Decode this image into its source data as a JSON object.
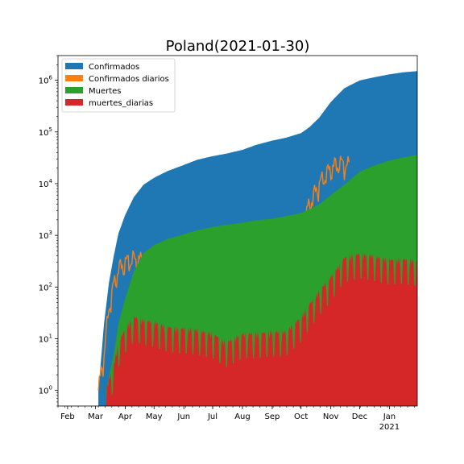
{
  "chart_data": {
    "type": "area",
    "title": "Poland(2021-01-30)",
    "xlabel": "",
    "ylabel": "",
    "yscale": "log",
    "ylim": [
      0.5,
      3000000
    ],
    "xlim": [
      "2020-01-22",
      "2021-01-30"
    ],
    "grid": false,
    "legend_position": "top-left",
    "x_ticks": [
      {
        "date": "2020-02-01",
        "label": "Feb"
      },
      {
        "date": "2020-03-01",
        "label": "Mar"
      },
      {
        "date": "2020-04-01",
        "label": "Apr"
      },
      {
        "date": "2020-05-01",
        "label": "May"
      },
      {
        "date": "2020-06-01",
        "label": "Jun"
      },
      {
        "date": "2020-07-01",
        "label": "Jul"
      },
      {
        "date": "2020-08-01",
        "label": "Aug"
      },
      {
        "date": "2020-09-01",
        "label": "Sep"
      },
      {
        "date": "2020-10-01",
        "label": "Oct"
      },
      {
        "date": "2020-11-01",
        "label": "Nov"
      },
      {
        "date": "2020-12-01",
        "label": "Dec"
      },
      {
        "date": "2021-01-01",
        "label": "Jan"
      }
    ],
    "x_year_label": {
      "date": "2021-01-01",
      "label": "2021"
    },
    "y_ticks": [
      {
        "value": 1,
        "exp": "0"
      },
      {
        "value": 10,
        "exp": "1"
      },
      {
        "value": 100,
        "exp": "2"
      },
      {
        "value": 1000,
        "exp": "3"
      },
      {
        "value": 10000,
        "exp": "4"
      },
      {
        "value": 100000,
        "exp": "5"
      },
      {
        "value": 1000000,
        "exp": "6"
      }
    ],
    "series": [
      {
        "name": "Confirmados",
        "color": "#1f77b4",
        "style": "area",
        "points": [
          [
            "2020-03-04",
            1
          ],
          [
            "2020-03-10",
            20
          ],
          [
            "2020-03-15",
            120
          ],
          [
            "2020-03-20",
            400
          ],
          [
            "2020-03-25",
            1100
          ],
          [
            "2020-04-01",
            2500
          ],
          [
            "2020-04-10",
            5500
          ],
          [
            "2020-04-20",
            9500
          ],
          [
            "2020-05-01",
            13000
          ],
          [
            "2020-05-15",
            17500
          ],
          [
            "2020-06-01",
            23000
          ],
          [
            "2020-06-15",
            29000
          ],
          [
            "2020-07-01",
            34000
          ],
          [
            "2020-07-15",
            38000
          ],
          [
            "2020-08-01",
            45000
          ],
          [
            "2020-08-15",
            56000
          ],
          [
            "2020-09-01",
            68000
          ],
          [
            "2020-09-15",
            77000
          ],
          [
            "2020-10-01",
            95000
          ],
          [
            "2020-10-10",
            125000
          ],
          [
            "2020-10-20",
            190000
          ],
          [
            "2020-11-01",
            380000
          ],
          [
            "2020-11-15",
            700000
          ],
          [
            "2020-12-01",
            990000
          ],
          [
            "2020-12-15",
            1130000
          ],
          [
            "2021-01-01",
            1300000
          ],
          [
            "2021-01-15",
            1420000
          ],
          [
            "2021-01-30",
            1500000
          ]
        ]
      },
      {
        "name": "Confirmados diarios",
        "color": "#ff7f0e",
        "style": "line",
        "points": [
          [
            "2020-03-04",
            1
          ],
          [
            "2020-03-10",
            5
          ],
          [
            "2020-03-15",
            40
          ],
          [
            "2020-03-20",
            110
          ],
          [
            "2020-03-25",
            220
          ],
          [
            "2020-04-01",
            300
          ],
          [
            "2020-04-10",
            350
          ],
          [
            "2020-04-20",
            320
          ],
          [
            "2020-05-01",
            330
          ],
          [
            "2020-05-15",
            350
          ],
          [
            "2020-06-01",
            350
          ],
          [
            "2020-06-15",
            400
          ],
          [
            "2020-07-01",
            320
          ],
          [
            "2020-07-15",
            310
          ],
          [
            "2020-08-01",
            600
          ],
          [
            "2020-08-10",
            700
          ],
          [
            "2020-08-15",
            800
          ],
          [
            "2020-09-01",
            650
          ],
          [
            "2020-09-15",
            700
          ],
          [
            "2020-10-01",
            1500
          ],
          [
            "2020-10-10",
            4000
          ],
          [
            "2020-10-20",
            10000
          ],
          [
            "2020-11-01",
            20000
          ],
          [
            "2020-11-10",
            25000
          ],
          [
            "2020-11-20",
            22000
          ]
        ]
      },
      {
        "name": "Muertes",
        "color": "#2ca02c",
        "style": "area",
        "points": [
          [
            "2020-03-12",
            1
          ],
          [
            "2020-03-20",
            5
          ],
          [
            "2020-03-25",
            20
          ],
          [
            "2020-04-01",
            60
          ],
          [
            "2020-04-10",
            200
          ],
          [
            "2020-04-20",
            450
          ],
          [
            "2020-05-01",
            650
          ],
          [
            "2020-05-15",
            850
          ],
          [
            "2020-06-01",
            1050
          ],
          [
            "2020-06-15",
            1250
          ],
          [
            "2020-07-01",
            1450
          ],
          [
            "2020-07-15",
            1600
          ],
          [
            "2020-08-01",
            1750
          ],
          [
            "2020-08-15",
            1950
          ],
          [
            "2020-09-01",
            2100
          ],
          [
            "2020-09-15",
            2350
          ],
          [
            "2020-10-01",
            2700
          ],
          [
            "2020-10-10",
            3200
          ],
          [
            "2020-10-20",
            4000
          ],
          [
            "2020-11-01",
            6000
          ],
          [
            "2020-11-15",
            9500
          ],
          [
            "2020-12-01",
            17000
          ],
          [
            "2020-12-15",
            22000
          ],
          [
            "2021-01-01",
            28000
          ],
          [
            "2021-01-15",
            32000
          ],
          [
            "2021-01-30",
            36000
          ]
        ]
      },
      {
        "name": "muertes_diarias",
        "color": "#d62728",
        "style": "area",
        "points": [
          [
            "2020-03-12",
            1
          ],
          [
            "2020-03-20",
            3
          ],
          [
            "2020-03-25",
            8
          ],
          [
            "2020-04-01",
            15
          ],
          [
            "2020-04-10",
            25
          ],
          [
            "2020-04-20",
            22
          ],
          [
            "2020-05-01",
            20
          ],
          [
            "2020-05-15",
            16
          ],
          [
            "2020-06-01",
            15
          ],
          [
            "2020-06-15",
            14
          ],
          [
            "2020-07-01",
            12
          ],
          [
            "2020-07-15",
            8
          ],
          [
            "2020-08-01",
            12
          ],
          [
            "2020-08-15",
            12
          ],
          [
            "2020-09-01",
            13
          ],
          [
            "2020-09-15",
            13
          ],
          [
            "2020-10-01",
            25
          ],
          [
            "2020-10-10",
            45
          ],
          [
            "2020-10-20",
            80
          ],
          [
            "2020-11-01",
            150
          ],
          [
            "2020-11-15",
            350
          ],
          [
            "2020-12-01",
            420
          ],
          [
            "2020-12-15",
            380
          ],
          [
            "2021-01-01",
            320
          ],
          [
            "2021-01-15",
            330
          ],
          [
            "2021-01-30",
            300
          ]
        ]
      }
    ]
  }
}
